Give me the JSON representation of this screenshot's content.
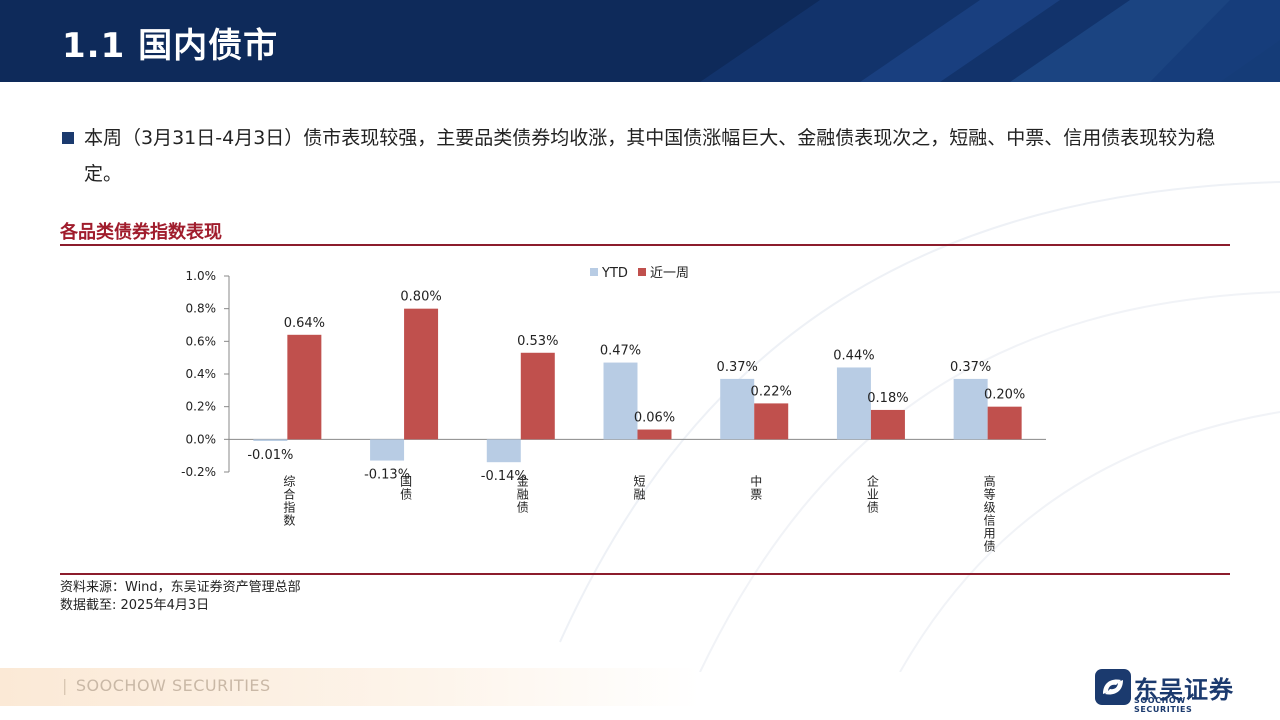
{
  "header": {
    "title": "1.1 国内债市"
  },
  "summary": {
    "text": "本周（3月31日-4月3日）债市表现较强，主要品类债券均收涨，其中国债涨幅巨大、金融债表现次之，短融、中票、信用债表现较为稳定。"
  },
  "chart_section": {
    "title": "各品类债券指数表现"
  },
  "chart_data": {
    "type": "bar",
    "title": "",
    "categories": [
      "综合指数",
      "国债",
      "金融债",
      "短融",
      "中票",
      "企业债",
      "高等级信用债"
    ],
    "series": [
      {
        "name": "YTD",
        "values": [
          -0.01,
          -0.13,
          -0.14,
          0.47,
          0.37,
          0.44,
          0.37
        ],
        "labels": [
          "-0.01%",
          "-0.13%",
          "-0.14%",
          "0.47%",
          "0.37%",
          "0.44%",
          "0.37%"
        ],
        "color": "#b8cce4"
      },
      {
        "name": "近一周",
        "values": [
          0.64,
          0.8,
          0.53,
          0.06,
          0.22,
          0.18,
          0.2
        ],
        "labels": [
          "0.64%",
          "0.80%",
          "0.53%",
          "0.06%",
          "0.22%",
          "0.18%",
          "0.20%"
        ],
        "color": "#c0504d"
      }
    ],
    "ylim": [
      -0.2,
      1.0
    ],
    "yticks": [
      -0.2,
      0.0,
      0.2,
      0.4,
      0.6,
      0.8,
      1.0
    ],
    "ytick_labels": [
      "-0.2%",
      "0.0%",
      "0.2%",
      "0.4%",
      "0.6%",
      "0.8%",
      "1.0%"
    ],
    "legend_position": "top-center",
    "grid": false
  },
  "source": {
    "line1": "资料来源：Wind，东吴证券资产管理总部",
    "line2": "数据截至: 2025年4月3日"
  },
  "footer": {
    "brand": "SOOCHOW SECURITIES",
    "bar": "|"
  },
  "logo": {
    "name": "东吴证券",
    "sub": "SOOCHOW SECURITIES"
  },
  "colors": {
    "banner": "#0e2a5a",
    "accent": "#8c1c2c"
  }
}
